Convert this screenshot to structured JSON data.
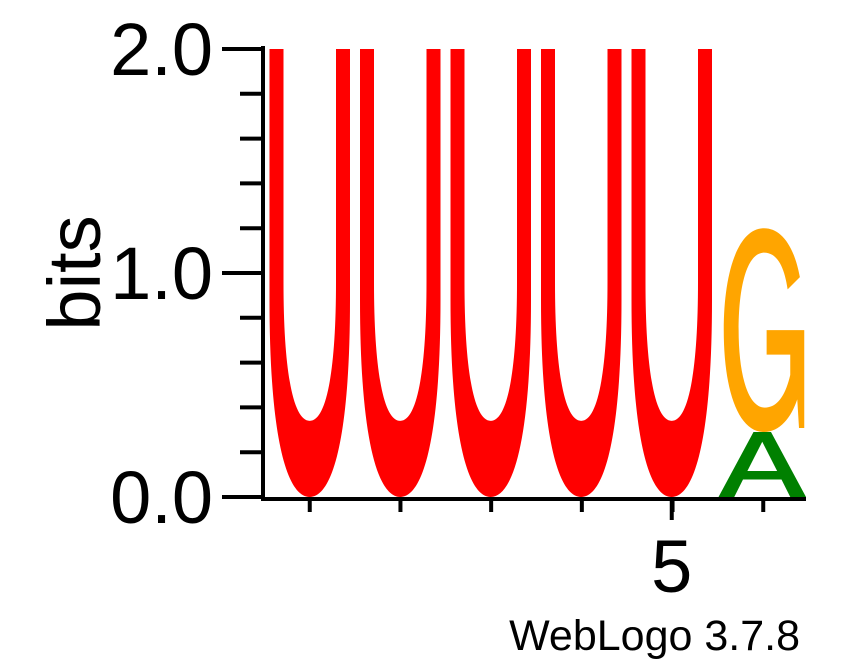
{
  "chart_data": {
    "type": "sequence-logo",
    "ylabel": "bits",
    "xlabel": "",
    "ylim": [
      0,
      2
    ],
    "y_ticks": [
      "0.0",
      "1.0",
      "2.0"
    ],
    "x_tick_labels": [
      {
        "position": 5,
        "label": "5"
      }
    ],
    "positions": [
      1,
      2,
      3,
      4,
      5,
      6
    ],
    "stacks": [
      {
        "position": 1,
        "letters": [
          {
            "letter": "U",
            "bits": 2.0,
            "color": "#ff0000"
          }
        ]
      },
      {
        "position": 2,
        "letters": [
          {
            "letter": "U",
            "bits": 2.0,
            "color": "#ff0000"
          }
        ]
      },
      {
        "position": 3,
        "letters": [
          {
            "letter": "U",
            "bits": 2.0,
            "color": "#ff0000"
          }
        ]
      },
      {
        "position": 4,
        "letters": [
          {
            "letter": "U",
            "bits": 2.0,
            "color": "#ff0000"
          }
        ]
      },
      {
        "position": 5,
        "letters": [
          {
            "letter": "U",
            "bits": 2.0,
            "color": "#ff0000"
          }
        ]
      },
      {
        "position": 6,
        "letters": [
          {
            "letter": "A",
            "bits": 0.29,
            "color": "#008000"
          },
          {
            "letter": "G",
            "bits": 0.91,
            "color": "#ffa500"
          }
        ]
      }
    ]
  },
  "footer": {
    "credit": "WebLogo 3.7.8"
  }
}
